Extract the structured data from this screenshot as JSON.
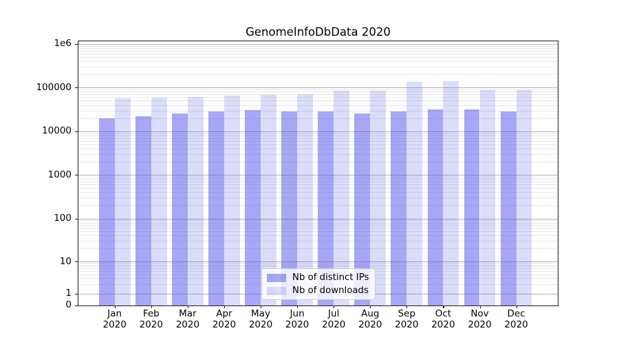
{
  "figure": {
    "background": "#ffffff",
    "frame_color": "#1a1a1a"
  },
  "chart_data": {
    "type": "bar",
    "title": "GenomeInfoDbData 2020",
    "x_categories": [
      "Jan",
      "Feb",
      "Mar",
      "Apr",
      "May",
      "Jun",
      "Jul",
      "Aug",
      "Sep",
      "Oct",
      "Nov",
      "Dec"
    ],
    "x_year_label": "2020",
    "series": [
      {
        "name": "Nb of distinct IPs",
        "color_hex": "#5050eb",
        "alpha": 0.5,
        "values": [
          19700,
          21800,
          25700,
          28400,
          30500,
          28000,
          28700,
          25100,
          28000,
          31200,
          31200,
          28700
        ]
      },
      {
        "name": "Nb of downloads",
        "color_hex": "#5050eb",
        "alpha": 0.2,
        "values": [
          56500,
          58600,
          61500,
          65400,
          67800,
          71100,
          84300,
          85600,
          133700,
          138700,
          87400,
          86500
        ]
      }
    ],
    "yscale": "symlog",
    "ylim": [
      0,
      1150000
    ],
    "y_ticks": [
      {
        "label": "1e6",
        "value": 1000000
      },
      {
        "label": "100000",
        "value": 100000
      },
      {
        "label": "10000",
        "value": 10000
      },
      {
        "label": "1000",
        "value": 1000
      },
      {
        "label": "100",
        "value": 100
      },
      {
        "label": "10",
        "value": 10
      },
      {
        "label": "1",
        "value": 1
      },
      {
        "label": "0",
        "value": 0
      }
    ],
    "grid": {
      "horizontal_major": true,
      "horizontal_minor": true,
      "vertical": false,
      "major_color": "#b3b3b3",
      "minor_color": "#e7e7e7"
    },
    "legend_position": "lower center"
  }
}
